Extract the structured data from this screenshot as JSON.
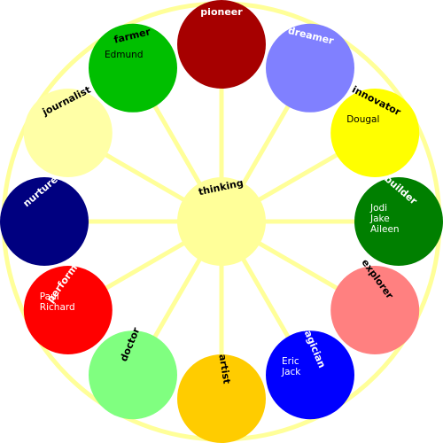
{
  "hub": {
    "label": "thinking",
    "color": "#ffff99"
  },
  "wheel_color": "#ffff99",
  "roles": [
    {
      "label": "pioneer",
      "color": "#a60000",
      "label_color": "#ffffff",
      "members": []
    },
    {
      "label": "dreamer",
      "color": "#8080ff",
      "label_color": "#ffffff",
      "members": []
    },
    {
      "label": "innovator",
      "color": "#ffff00",
      "label_color": "#000000",
      "members": [
        "Dougal"
      ]
    },
    {
      "label": "builder",
      "color": "#007f00",
      "label_color": "#ffffff",
      "members": [
        "Jodi",
        "Jake",
        "Aileen"
      ]
    },
    {
      "label": "explorer",
      "color": "#ff8080",
      "label_color": "#000000",
      "members": []
    },
    {
      "label": "magician",
      "color": "#0000ff",
      "label_color": "#ffffff",
      "members": [
        "Eric",
        "Jack"
      ]
    },
    {
      "label": "artist",
      "color": "#ffcc00",
      "label_color": "#000000",
      "members": []
    },
    {
      "label": "doctor",
      "color": "#80ff80",
      "label_color": "#000000",
      "members": []
    },
    {
      "label": "performer",
      "color": "#ff0000",
      "label_color": "#ffffff",
      "members": [
        "Paul",
        "Richard"
      ]
    },
    {
      "label": "nurturer",
      "color": "#000080",
      "label_color": "#ffffff",
      "members": []
    },
    {
      "label": "journalist",
      "color": "#ffffa6",
      "label_color": "#000000",
      "members": []
    },
    {
      "label": "farmer",
      "color": "#00bf00",
      "label_color": "#000000",
      "members": [
        "Edmund"
      ]
    }
  ]
}
